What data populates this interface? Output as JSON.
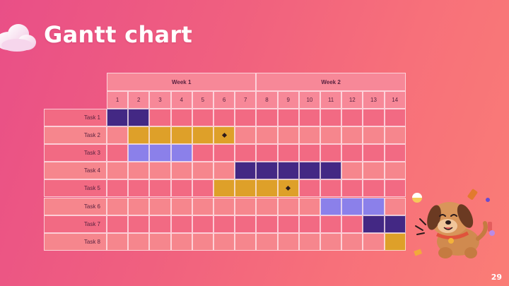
{
  "title": "Gantt chart",
  "page_number": "29",
  "colors": {
    "dark_purple": "#432884",
    "gold": "#dea029",
    "lavender": "#8b80ea",
    "row_light": "#f6868d",
    "row_dark": "#f26a83",
    "header_bg": "#f78898"
  },
  "weeks": [
    {
      "label": "Week 1",
      "start": 1,
      "end": 7
    },
    {
      "label": "Week 2",
      "start": 8,
      "end": 14
    }
  ],
  "days": [
    "1",
    "2",
    "3",
    "4",
    "5",
    "6",
    "7",
    "8",
    "9",
    "10",
    "11",
    "12",
    "13",
    "14"
  ],
  "tasks": [
    {
      "label": "Task 1",
      "start": 1,
      "end": 2,
      "color": "dark_purple",
      "milestone": null
    },
    {
      "label": "Task 2",
      "start": 2,
      "end": 6,
      "color": "gold",
      "milestone": 6
    },
    {
      "label": "Task 3",
      "start": 2,
      "end": 4,
      "color": "lavender",
      "milestone": null
    },
    {
      "label": "Task 4",
      "start": 7,
      "end": 11,
      "color": "dark_purple",
      "milestone": null
    },
    {
      "label": "Task 5",
      "start": 6,
      "end": 9,
      "color": "gold",
      "milestone": 9
    },
    {
      "label": "Task 6",
      "start": 11,
      "end": 13,
      "color": "lavender",
      "milestone": null
    },
    {
      "label": "Task 7",
      "start": 13,
      "end": 14,
      "color": "dark_purple",
      "milestone": null
    },
    {
      "label": "Task 8",
      "start": 14,
      "end": 14,
      "color": "gold",
      "milestone": null
    }
  ],
  "decorations": [
    "cloud-icon",
    "dog-illustration"
  ]
}
